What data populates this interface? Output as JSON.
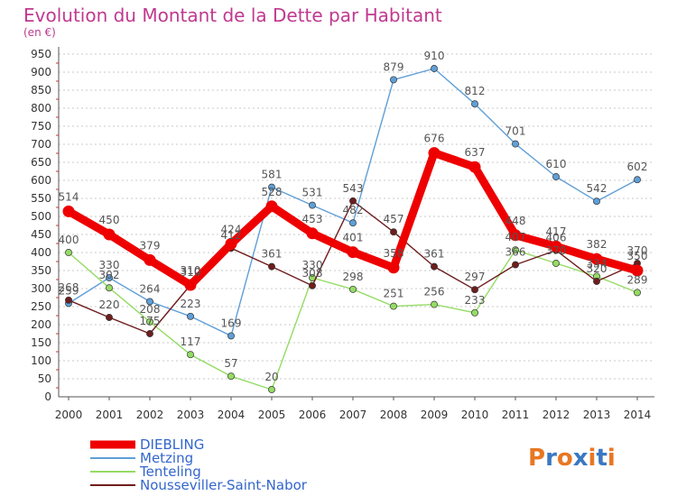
{
  "chart_data": {
    "type": "line",
    "title": "Evolution du Montant de la Dette par Habitant",
    "subtitle": "(en €)",
    "xlabel": "",
    "ylabel": "",
    "ylim": [
      0,
      950
    ],
    "y_ticks": [
      0,
      50,
      100,
      150,
      200,
      250,
      300,
      350,
      400,
      450,
      500,
      550,
      600,
      650,
      700,
      750,
      800,
      850,
      900,
      950
    ],
    "categories": [
      "2000",
      "2001",
      "2002",
      "2003",
      "2004",
      "2005",
      "2006",
      "2007",
      "2008",
      "2009",
      "2010",
      "2011",
      "2012",
      "2013",
      "2014"
    ],
    "grid": "horizontal dashed",
    "legend_position": "bottom-left",
    "series": [
      {
        "name": "DIEBLING",
        "color": "#ee0000",
        "values": [
          514,
          450,
          379,
          310,
          424,
          528,
          453,
          401,
          358,
          676,
          637,
          448,
          417,
          382,
          350
        ]
      },
      {
        "name": "Metzing",
        "color": "#5f9fd7",
        "values": [
          259,
          330,
          264,
          223,
          169,
          581,
          531,
          482,
          879,
          910,
          812,
          701,
          610,
          542,
          602
        ]
      },
      {
        "name": "Tenteling",
        "color": "#94dc64",
        "values": [
          400,
          302,
          208,
          117,
          57,
          20,
          330,
          298,
          251,
          256,
          233,
          407,
          370,
          334,
          289
        ]
      },
      {
        "name": "Nousseviller-Saint-Nabor",
        "color": "#6e1d1d",
        "values": [
          268,
          220,
          175,
          310,
          412,
          361,
          308,
          543,
          457,
          361,
          297,
          366,
          406,
          320,
          370
        ]
      }
    ]
  },
  "brand": {
    "text": "Proxiti",
    "letter_colors": [
      "#e87722",
      "#3a78c2",
      "#e87722",
      "#3a78c2",
      "#e87722",
      "#3a78c2",
      "#e87722"
    ]
  }
}
